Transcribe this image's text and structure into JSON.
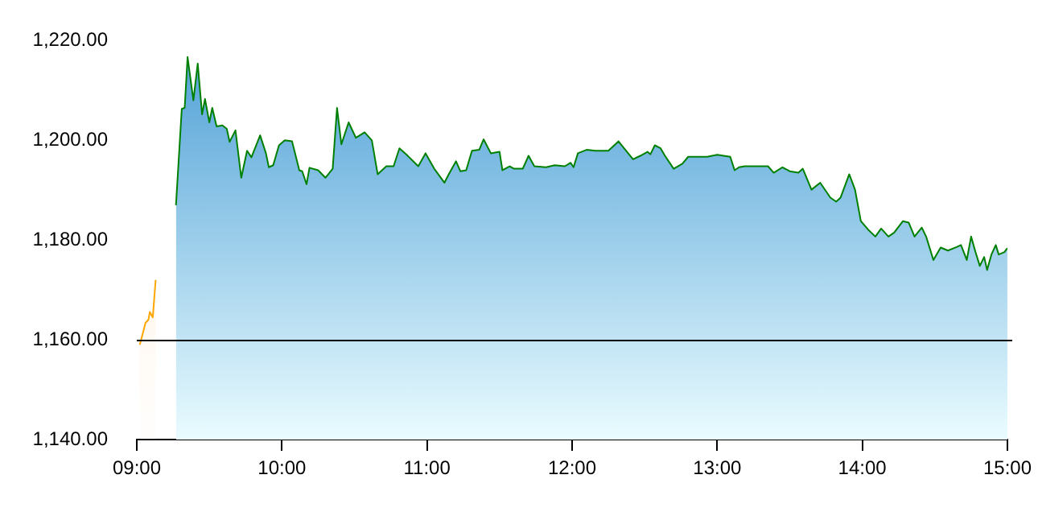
{
  "chart_data": {
    "type": "area",
    "legend": false,
    "grid": false,
    "xlim": [
      9,
      15
    ],
    "ylim": [
      1140,
      1220
    ],
    "xticks": [
      {
        "value": 9,
        "label": "09:00"
      },
      {
        "value": 10,
        "label": "10:00"
      },
      {
        "value": 11,
        "label": "11:00"
      },
      {
        "value": 12,
        "label": "12:00"
      },
      {
        "value": 13,
        "label": "13:00"
      },
      {
        "value": 14,
        "label": "14:00"
      },
      {
        "value": 15,
        "label": "15:00"
      }
    ],
    "yticks": [
      {
        "value": 1140,
        "label": "1,140.00"
      },
      {
        "value": 1160,
        "label": "1,160.00"
      },
      {
        "value": 1180,
        "label": "1,180.00"
      },
      {
        "value": 1200,
        "label": "1,200.00"
      },
      {
        "value": 1220,
        "label": "1,220.00"
      }
    ],
    "ref_lines": [
      {
        "axis": "y",
        "value": 1160,
        "color": "#000000"
      }
    ],
    "series": [
      {
        "color": "#ffa500",
        "x": [
          9.02,
          9.03,
          9.06,
          9.08,
          9.09,
          9.11,
          9.13
        ],
        "values": [
          1159,
          1160,
          1163.4,
          1164,
          1165.6,
          1164.5,
          1172
        ]
      },
      {
        "color": "#008000",
        "x": [
          9.27,
          9.31,
          9.33,
          9.35,
          9.39,
          9.42,
          9.45,
          9.47,
          9.5,
          9.52,
          9.55,
          9.59,
          9.62,
          9.64,
          9.68,
          9.72,
          9.76,
          9.79,
          9.85,
          9.89,
          9.91,
          9.94,
          9.98,
          10.02,
          10.07,
          10.12,
          10.14,
          10.17,
          10.19,
          10.25,
          10.3,
          10.35,
          10.38,
          10.41,
          10.46,
          10.51,
          10.57,
          10.62,
          10.66,
          10.72,
          10.77,
          10.81,
          10.86,
          10.94,
          10.99,
          11.05,
          11.12,
          11.15,
          11.2,
          11.23,
          11.27,
          11.31,
          11.36,
          11.39,
          11.44,
          11.5,
          11.52,
          11.57,
          11.6,
          11.66,
          11.7,
          11.74,
          11.82,
          11.88,
          11.95,
          11.99,
          12.01,
          12.04,
          12.1,
          12.16,
          12.25,
          12.32,
          12.42,
          12.47,
          12.52,
          12.54,
          12.57,
          12.61,
          12.64,
          12.7,
          12.76,
          12.8,
          12.87,
          12.93,
          13,
          13.09,
          13.12,
          13.15,
          13.19,
          13.24,
          13.35,
          13.39,
          13.45,
          13.5,
          13.56,
          13.59,
          13.65,
          13.71,
          13.78,
          13.82,
          13.85,
          13.91,
          13.95,
          13.99,
          14.04,
          14.09,
          14.13,
          14.18,
          14.22,
          14.28,
          14.32,
          14.36,
          14.41,
          14.44,
          14.49,
          14.54,
          14.59,
          14.65,
          14.68,
          14.72,
          14.75,
          14.78,
          14.81,
          14.84,
          14.86,
          14.89,
          14.92,
          14.94,
          14.98,
          15
        ],
        "values": [
          1187,
          1206.3,
          1206.5,
          1216.7,
          1208,
          1215.4,
          1205.2,
          1208.3,
          1203.6,
          1206.5,
          1202.8,
          1203,
          1202.3,
          1199.7,
          1202,
          1192.5,
          1197.9,
          1196.6,
          1201,
          1197.4,
          1194.6,
          1195,
          1199,
          1200,
          1199.8,
          1194,
          1193.8,
          1191.2,
          1194.5,
          1194,
          1192.5,
          1194.3,
          1206.5,
          1199.2,
          1203.6,
          1200.5,
          1201.6,
          1200,
          1193.2,
          1194.8,
          1194.8,
          1198.4,
          1197.1,
          1194.8,
          1197.4,
          1194.3,
          1191.5,
          1193.2,
          1195.8,
          1193.8,
          1194,
          1197.9,
          1198.1,
          1200.2,
          1197.4,
          1197.7,
          1194,
          1194.8,
          1194.3,
          1194.3,
          1196.9,
          1194.8,
          1194.6,
          1195,
          1194.8,
          1195.5,
          1194.6,
          1197.4,
          1198.1,
          1197.9,
          1197.9,
          1199.8,
          1196.2,
          1196.9,
          1197.7,
          1197.2,
          1199,
          1198.4,
          1196.9,
          1194.3,
          1195.3,
          1196.7,
          1196.7,
          1196.7,
          1197.1,
          1196.7,
          1194,
          1194.6,
          1194.8,
          1194.8,
          1194.8,
          1193.5,
          1194.6,
          1193.8,
          1193.5,
          1194.3,
          1190.1,
          1191.5,
          1188.5,
          1187.7,
          1188.5,
          1193.2,
          1190.1,
          1183.8,
          1182.1,
          1180.7,
          1182.3,
          1180.7,
          1181.5,
          1183.8,
          1183.5,
          1180.7,
          1182.5,
          1180.7,
          1176,
          1178.5,
          1177.9,
          1178.6,
          1179,
          1176,
          1180.7,
          1177.6,
          1174.8,
          1176.6,
          1174,
          1177.1,
          1179,
          1177.1,
          1177.6,
          1178.4
        ]
      }
    ]
  }
}
